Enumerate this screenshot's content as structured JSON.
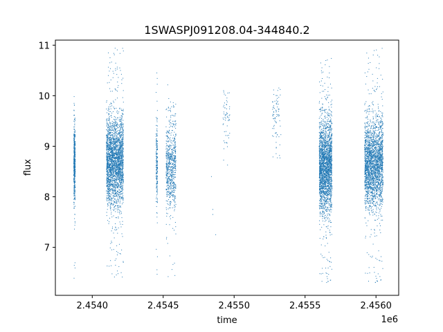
{
  "chart_data": {
    "type": "scatter",
    "title": "1SWASPJ091208.04-344840.2",
    "xlabel": "time",
    "ylabel": "flux",
    "x_offset_label": "1e6",
    "xlim": [
      2453740,
      2456160
    ],
    "ylim": [
      6.05,
      11.1
    ],
    "xticks": [
      2.454,
      2.4545,
      2.455,
      2.4555,
      2.456
    ],
    "xtick_labels": [
      "2.4540",
      "2.4545",
      "2.4550",
      "2.4555",
      "2.4560"
    ],
    "yticks": [
      7,
      8,
      9,
      10,
      11
    ],
    "ytick_labels": [
      "7",
      "8",
      "9",
      "10",
      "11"
    ],
    "grid": false,
    "marker_color": "#1f77b4",
    "seasons": [
      {
        "x_start": 2453870,
        "x_end": 2453880,
        "center": 8.65,
        "spread": 0.38,
        "min": 6.25,
        "max": 10.1,
        "count": 500
      },
      {
        "x_start": 2454100,
        "x_end": 2454220,
        "center": 8.7,
        "spread": 0.42,
        "min": 6.4,
        "max": 10.95,
        "count": 2600
      },
      {
        "x_start": 2454450,
        "x_end": 2454460,
        "center": 8.65,
        "spread": 0.4,
        "min": 6.4,
        "max": 10.5,
        "count": 200
      },
      {
        "x_start": 2454520,
        "x_end": 2454590,
        "center": 8.6,
        "spread": 0.45,
        "min": 6.35,
        "max": 10.45,
        "count": 700
      },
      {
        "x_start": 2454920,
        "x_end": 2454970,
        "center": 9.6,
        "spread": 0.3,
        "min": 8.6,
        "max": 10.1,
        "count": 60
      },
      {
        "x_start": 2455270,
        "x_end": 2455330,
        "center": 9.5,
        "spread": 0.35,
        "min": 8.75,
        "max": 10.6,
        "count": 80
      },
      {
        "x_start": 2455600,
        "x_end": 2455690,
        "center": 8.6,
        "spread": 0.45,
        "min": 6.25,
        "max": 10.75,
        "count": 2400
      },
      {
        "x_start": 2455920,
        "x_end": 2456050,
        "center": 8.65,
        "spread": 0.42,
        "min": 6.25,
        "max": 10.95,
        "count": 2500
      }
    ],
    "sparse_points": [
      {
        "x": 2454840,
        "y": 8.4
      },
      {
        "x": 2454850,
        "y": 7.75
      },
      {
        "x": 2454850,
        "y": 7.65
      },
      {
        "x": 2454870,
        "y": 7.25
      }
    ]
  }
}
